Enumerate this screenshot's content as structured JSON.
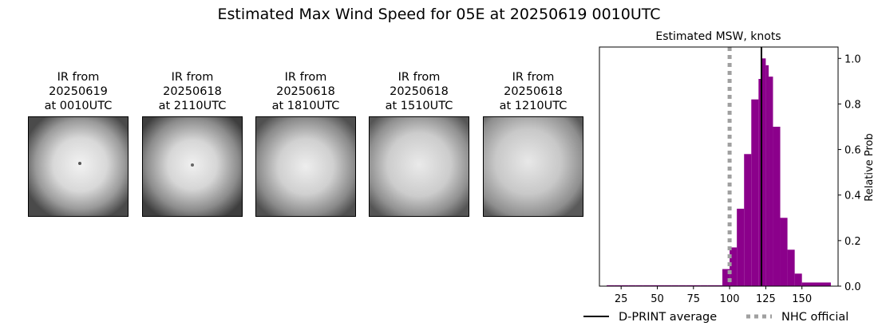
{
  "title": "Estimated Max Wind Speed for 05E at 20250619 0010UTC",
  "ir_panels": [
    {
      "caption": "IR from\n20250619\nat 0010UTC"
    },
    {
      "caption": "IR from\n20250618\nat 2110UTC"
    },
    {
      "caption": "IR from\n20250618\nat 1810UTC"
    },
    {
      "caption": "IR from\n20250618\nat 1510UTC"
    },
    {
      "caption": "IR from\n20250618\nat 1210UTC"
    }
  ],
  "chart_data": {
    "type": "bar",
    "title": "Estimated MSW, knots",
    "xlabel": "",
    "ylabel": "Relative Prob",
    "xlim": [
      10,
      175
    ],
    "ylim": [
      0,
      1.05
    ],
    "xticks": [
      25,
      50,
      75,
      100,
      125,
      150
    ],
    "yticks": [
      0.0,
      0.2,
      0.4,
      0.6,
      0.8,
      1.0
    ],
    "bar_color": "#8b008b",
    "bins": [
      {
        "x0": 15,
        "x1": 20,
        "value": 0.004
      },
      {
        "x0": 20,
        "x1": 25,
        "value": 0.004
      },
      {
        "x0": 25,
        "x1": 30,
        "value": 0.004
      },
      {
        "x0": 30,
        "x1": 35,
        "value": 0.004
      },
      {
        "x0": 35,
        "x1": 40,
        "value": 0.004
      },
      {
        "x0": 40,
        "x1": 45,
        "value": 0.004
      },
      {
        "x0": 45,
        "x1": 50,
        "value": 0.004
      },
      {
        "x0": 50,
        "x1": 55,
        "value": 0.004
      },
      {
        "x0": 55,
        "x1": 60,
        "value": 0.004
      },
      {
        "x0": 60,
        "x1": 65,
        "value": 0.004
      },
      {
        "x0": 65,
        "x1": 70,
        "value": 0.004
      },
      {
        "x0": 70,
        "x1": 75,
        "value": 0.004
      },
      {
        "x0": 75,
        "x1": 80,
        "value": 0.004
      },
      {
        "x0": 80,
        "x1": 85,
        "value": 0.004
      },
      {
        "x0": 85,
        "x1": 90,
        "value": 0.004
      },
      {
        "x0": 90,
        "x1": 95,
        "value": 0.004
      },
      {
        "x0": 95,
        "x1": 100,
        "value": 0.075
      },
      {
        "x0": 100,
        "x1": 105,
        "value": 0.17
      },
      {
        "x0": 105,
        "x1": 110,
        "value": 0.34
      },
      {
        "x0": 110,
        "x1": 115,
        "value": 0.58
      },
      {
        "x0": 115,
        "x1": 120,
        "value": 0.82
      },
      {
        "x0": 120,
        "x1": 122,
        "value": 0.91
      },
      {
        "x0": 122,
        "x1": 125,
        "value": 1.0
      },
      {
        "x0": 125,
        "x1": 127,
        "value": 0.97
      },
      {
        "x0": 127,
        "x1": 130,
        "value": 0.92
      },
      {
        "x0": 130,
        "x1": 135,
        "value": 0.7
      },
      {
        "x0": 135,
        "x1": 140,
        "value": 0.3
      },
      {
        "x0": 140,
        "x1": 145,
        "value": 0.16
      },
      {
        "x0": 145,
        "x1": 150,
        "value": 0.055
      },
      {
        "x0": 150,
        "x1": 170,
        "value": 0.016
      }
    ],
    "lines": [
      {
        "name": "D-PRINT average",
        "x": 122,
        "color": "#000000",
        "style": "solid"
      },
      {
        "name": "NHC official",
        "x": 100,
        "color": "#a0a0a0",
        "style": "dotted"
      }
    ],
    "legend_location": "bottom"
  }
}
